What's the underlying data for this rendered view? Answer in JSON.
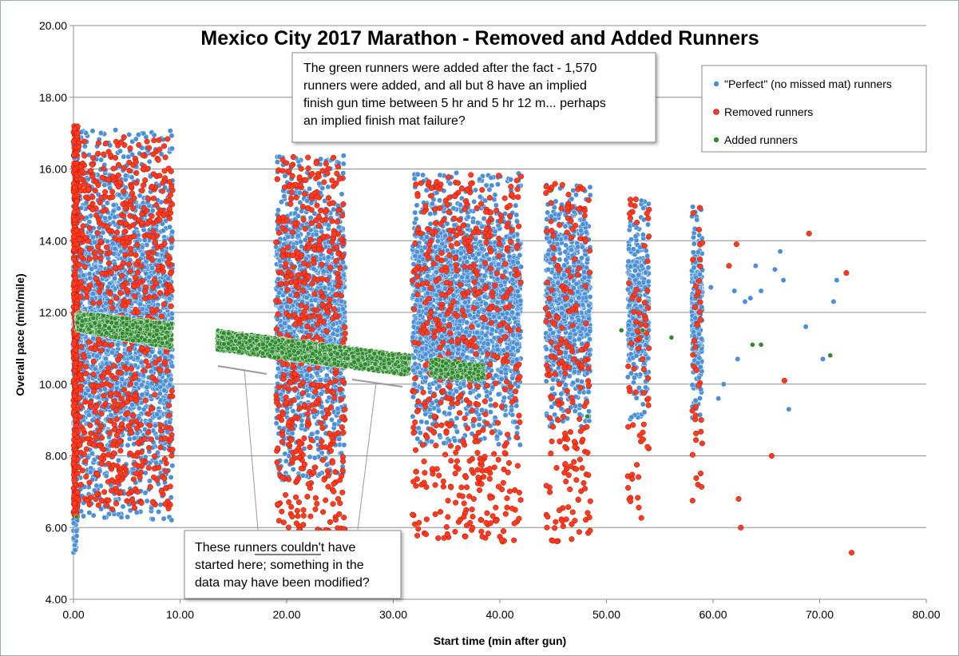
{
  "chart_data": {
    "type": "scatter",
    "title": "Mexico City 2017 Marathon - Removed and Added Runners",
    "xlabel": "Start time (min after gun)",
    "ylabel": "Overall pace (min/mile)",
    "xlim": [
      0,
      80
    ],
    "ylim": [
      4,
      20
    ],
    "x_ticks": [
      "0.00",
      "10.00",
      "20.00",
      "30.00",
      "40.00",
      "50.00",
      "60.00",
      "70.00",
      "80.00"
    ],
    "y_ticks": [
      "4.00",
      "6.00",
      "8.00",
      "10.00",
      "12.00",
      "14.00",
      "16.00",
      "18.00",
      "20.00"
    ],
    "grid": "horizontal",
    "legend_position": "top-right",
    "series": [
      {
        "name": "\"Perfect\" (no missed mat) runners",
        "color": "#4a90d9",
        "clusters": [
          {
            "x": [
              0.0,
              0.4
            ],
            "y": [
              5.3,
              16.8
            ]
          },
          {
            "x": [
              0.3,
              9.3
            ],
            "y": [
              6.2,
              17.1
            ]
          },
          {
            "x": [
              19.0,
              25.5
            ],
            "y": [
              7.3,
              16.4
            ]
          },
          {
            "x": [
              31.8,
              42.0
            ],
            "y": [
              8.3,
              15.9
            ]
          },
          {
            "x": [
              44.3,
              48.5
            ],
            "y": [
              8.8,
              15.6
            ]
          },
          {
            "x": [
              52.0,
              54.0
            ],
            "y": [
              9.0,
              15.2
            ]
          },
          {
            "x": [
              58.0,
              59.0
            ],
            "y": [
              9.0,
              15.0
            ]
          }
        ],
        "points": [
          [
            59.8,
            12.7
          ],
          [
            60.5,
            9.6
          ],
          [
            61.0,
            10.0
          ],
          [
            62.0,
            12.6
          ],
          [
            62.3,
            10.7
          ],
          [
            63.0,
            12.3
          ],
          [
            63.5,
            12.4
          ],
          [
            64.0,
            13.3
          ],
          [
            64.5,
            12.6
          ],
          [
            65.8,
            13.2
          ],
          [
            66.3,
            13.7
          ],
          [
            66.6,
            12.9
          ],
          [
            67.1,
            9.3
          ],
          [
            68.7,
            11.6
          ],
          [
            70.3,
            10.7
          ],
          [
            71.3,
            12.3
          ],
          [
            71.6,
            12.9
          ]
        ]
      },
      {
        "name": "Removed runners",
        "color": "#ff3b1f",
        "clusters": [
          {
            "x": [
              0.0,
              0.4
            ],
            "y": [
              6.3,
              17.2
            ]
          },
          {
            "x": [
              0.5,
              9.3
            ],
            "y": [
              6.5,
              16.9
            ]
          },
          {
            "x": [
              19.0,
              25.5
            ],
            "y": [
              5.9,
              16.4
            ]
          },
          {
            "x": [
              31.8,
              42.0
            ],
            "y": [
              5.6,
              15.9
            ]
          },
          {
            "x": [
              44.3,
              48.5
            ],
            "y": [
              5.6,
              15.6
            ]
          },
          {
            "x": [
              52.0,
              54.0
            ],
            "y": [
              6.2,
              15.2
            ]
          },
          {
            "x": [
              58.0,
              59.0
            ],
            "y": [
              6.7,
              15.0
            ]
          }
        ],
        "points": [
          [
            61.5,
            13.3
          ],
          [
            62.2,
            13.9
          ],
          [
            62.4,
            6.8
          ],
          [
            62.6,
            6.0
          ],
          [
            65.5,
            8.0
          ],
          [
            66.7,
            10.1
          ],
          [
            69.0,
            14.2
          ],
          [
            72.5,
            13.1
          ],
          [
            73.0,
            5.3
          ]
        ]
      },
      {
        "name": "Added runners",
        "color": "#2e8b2e",
        "clusters": [
          {
            "x": [
              0.3,
              9.2
            ],
            "y_start": [
              11.5,
              12.0
            ],
            "y_end": [
              11.0,
              11.7
            ]
          },
          {
            "x": [
              13.5,
              31.5
            ],
            "y_start": [
              10.95,
              11.5
            ],
            "y_end": [
              10.25,
              10.8
            ]
          },
          {
            "x": [
              33.5,
              38.5
            ],
            "y_start": [
              10.2,
              10.7
            ],
            "y_end": [
              10.1,
              10.6
            ]
          }
        ],
        "points": [
          [
            0.3,
            6.3
          ],
          [
            48.2,
            9.1
          ],
          [
            51.4,
            11.5
          ],
          [
            53.4,
            11.5
          ],
          [
            56.1,
            11.3
          ],
          [
            63.7,
            11.1
          ],
          [
            64.5,
            11.1
          ],
          [
            71.0,
            10.8
          ]
        ]
      }
    ],
    "annotations": [
      "The green runners were added after the fact - 1,570",
      "runners were added, and all but 8 have an implied",
      "finish gun time between 5 hr and 5 hr 12 m... perhaps",
      "an implied finish mat failure?",
      "These runners couldn't have",
      "started here; something in the",
      "data may have been modified?"
    ]
  }
}
